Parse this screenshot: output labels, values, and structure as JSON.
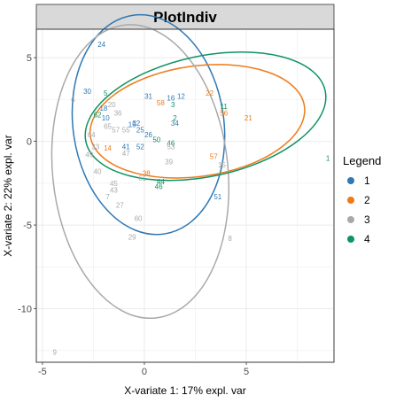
{
  "chart_data": {
    "type": "scatter",
    "title": "PlotIndiv",
    "xlabel": "X-variate 1: 17% expl. var",
    "ylabel": "X-variate 2: 22% expl. var",
    "xlim": [
      -5.3,
      9.3
    ],
    "ylim": [
      -13.2,
      6.7
    ],
    "xticks": [
      -5,
      0,
      5
    ],
    "yticks": [
      5,
      0,
      -5,
      -10
    ],
    "grid": true,
    "legend": {
      "title": "Legend",
      "position": "right",
      "entries": [
        "1",
        "2",
        "3",
        "4"
      ]
    },
    "colors": {
      "1": "#2f78b4",
      "2": "#ee7a19",
      "3": "#a9a9a9",
      "4": "#0f9363"
    },
    "ellipses": [
      {
        "group": "1",
        "center": [
          0.2,
          1.0
        ],
        "rx": 3.7,
        "ry": 6.6,
        "angle": -8
      },
      {
        "group": "2",
        "center": [
          2.6,
          1.2
        ],
        "rx": 5.3,
        "ry": 3.3,
        "angle": -8
      },
      {
        "group": "3",
        "center": [
          -0.2,
          -1.8
        ],
        "rx": 4.3,
        "ry": 8.8,
        "angle": -6
      },
      {
        "group": "4",
        "center": [
          3.0,
          1.5
        ],
        "rx": 6.0,
        "ry": 3.6,
        "angle": -12
      }
    ],
    "points": [
      {
        "label": "24",
        "x": -2.1,
        "y": 5.8,
        "group": "1"
      },
      {
        "label": "30",
        "x": -2.8,
        "y": 3.0,
        "group": "1"
      },
      {
        "label": "5",
        "x": -1.9,
        "y": 2.9,
        "group": "4"
      },
      {
        "label": "6",
        "x": -3.5,
        "y": 2.5,
        "group": "3"
      },
      {
        "label": "20",
        "x": -1.6,
        "y": 2.2,
        "group": "3"
      },
      {
        "label": "18",
        "x": -2.0,
        "y": 2.0,
        "group": "1"
      },
      {
        "label": "31",
        "x": 0.2,
        "y": 2.7,
        "group": "1"
      },
      {
        "label": "58",
        "x": 0.8,
        "y": 2.3,
        "group": "2"
      },
      {
        "label": "16",
        "x": 1.3,
        "y": 2.6,
        "group": "1"
      },
      {
        "label": "12",
        "x": 1.8,
        "y": 2.7,
        "group": "1"
      },
      {
        "label": "3",
        "x": 1.4,
        "y": 2.2,
        "group": "4"
      },
      {
        "label": "22",
        "x": 3.2,
        "y": 2.9,
        "group": "2"
      },
      {
        "label": "11",
        "x": 3.9,
        "y": 2.1,
        "group": "4"
      },
      {
        "label": "56",
        "x": 3.9,
        "y": 1.7,
        "group": "2"
      },
      {
        "label": "21",
        "x": 5.1,
        "y": 1.4,
        "group": "2"
      },
      {
        "label": "62",
        "x": -2.3,
        "y": 1.6,
        "group": "4"
      },
      {
        "label": "10",
        "x": -1.9,
        "y": 1.4,
        "group": "1"
      },
      {
        "label": "36",
        "x": -1.3,
        "y": 1.7,
        "group": "3"
      },
      {
        "label": "2",
        "x": 1.5,
        "y": 1.4,
        "group": "4"
      },
      {
        "label": "15",
        "x": -0.6,
        "y": 1.0,
        "group": "1"
      },
      {
        "label": "32",
        "x": -0.4,
        "y": 1.1,
        "group": "1"
      },
      {
        "label": "65",
        "x": -1.8,
        "y": 0.9,
        "group": "3"
      },
      {
        "label": "57",
        "x": -1.4,
        "y": 0.7,
        "group": "3"
      },
      {
        "label": "55",
        "x": -0.9,
        "y": 0.7,
        "group": "3"
      },
      {
        "label": "25",
        "x": -0.2,
        "y": 0.7,
        "group": "1"
      },
      {
        "label": "34",
        "x": 1.5,
        "y": 1.1,
        "group": "1"
      },
      {
        "label": "50",
        "x": 0.6,
        "y": 0.1,
        "group": "4"
      },
      {
        "label": "64",
        "x": -2.6,
        "y": 0.4,
        "group": "3"
      },
      {
        "label": "26",
        "x": 0.2,
        "y": 0.4,
        "group": "1"
      },
      {
        "label": "14",
        "x": -1.8,
        "y": -0.4,
        "group": "2"
      },
      {
        "label": "41",
        "x": -0.9,
        "y": -0.3,
        "group": "1"
      },
      {
        "label": "52",
        "x": -0.2,
        "y": -0.3,
        "group": "1"
      },
      {
        "label": "33",
        "x": -2.4,
        "y": -0.3,
        "group": "3"
      },
      {
        "label": "46",
        "x": 1.3,
        "y": -0.1,
        "group": "4"
      },
      {
        "label": "53",
        "x": 1.3,
        "y": -0.3,
        "group": "3"
      },
      {
        "label": "47",
        "x": -0.9,
        "y": -0.7,
        "group": "3"
      },
      {
        "label": "49",
        "x": -2.7,
        "y": -0.8,
        "group": "3"
      },
      {
        "label": "39",
        "x": 1.2,
        "y": -1.2,
        "group": "3"
      },
      {
        "label": "57",
        "x": 3.4,
        "y": -0.9,
        "group": "2"
      },
      {
        "label": "15",
        "x": 3.8,
        "y": -1.4,
        "group": "3"
      },
      {
        "label": "1",
        "x": 9.0,
        "y": -1.0,
        "group": "4"
      },
      {
        "label": "38",
        "x": 0.1,
        "y": -1.9,
        "group": "2"
      },
      {
        "label": "40",
        "x": -2.3,
        "y": -1.8,
        "group": "3"
      },
      {
        "label": "61",
        "x": -0.1,
        "y": -2.2,
        "group": "3"
      },
      {
        "label": "44",
        "x": 0.8,
        "y": -2.4,
        "group": "4"
      },
      {
        "label": "45",
        "x": -1.5,
        "y": -2.5,
        "group": "3"
      },
      {
        "label": "46",
        "x": 0.7,
        "y": -2.7,
        "group": "4"
      },
      {
        "label": "43",
        "x": -1.5,
        "y": -2.9,
        "group": "3"
      },
      {
        "label": "7",
        "x": -1.8,
        "y": -3.3,
        "group": "3"
      },
      {
        "label": "51",
        "x": 3.6,
        "y": -3.3,
        "group": "1"
      },
      {
        "label": "27",
        "x": -1.2,
        "y": -3.8,
        "group": "3"
      },
      {
        "label": "60",
        "x": -0.3,
        "y": -4.6,
        "group": "3"
      },
      {
        "label": "29",
        "x": -0.6,
        "y": -5.7,
        "group": "3"
      },
      {
        "label": "8",
        "x": 4.2,
        "y": -5.8,
        "group": "3"
      },
      {
        "label": "9",
        "x": -4.4,
        "y": -12.6,
        "group": "3"
      }
    ]
  }
}
